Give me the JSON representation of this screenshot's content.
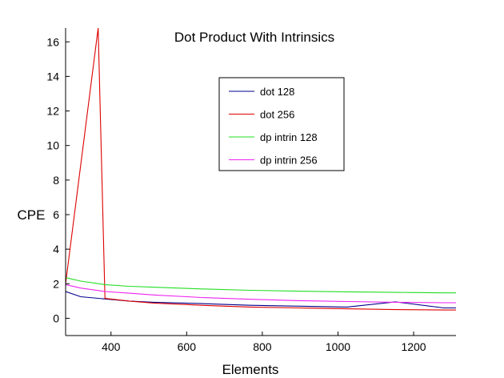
{
  "chart_data": {
    "type": "line",
    "title": "Dot Product With Intrinsics",
    "xlabel": "Elements",
    "ylabel": "CPE",
    "xlim": [
      280,
      1312
    ],
    "ylim": [
      -1,
      16.8
    ],
    "xticks": [
      400,
      600,
      800,
      1000,
      1200
    ],
    "yticks": [
      0,
      2,
      4,
      6,
      8,
      10,
      12,
      14,
      16
    ],
    "grid": false,
    "legend_position": "top-center",
    "series": [
      {
        "name": "dot 128",
        "color": "#00008b",
        "x": [
          280,
          320,
          384,
          448,
          512,
          640,
          768,
          896,
          1024,
          1152,
          1280,
          1312
        ],
        "y": [
          1.55,
          1.25,
          1.12,
          1.0,
          0.93,
          0.85,
          0.75,
          0.7,
          0.65,
          0.95,
          0.6,
          0.6
        ]
      },
      {
        "name": "dot 256",
        "color": "#dd0000",
        "x": [
          280,
          366,
          384,
          448,
          512,
          640,
          768,
          896,
          1024,
          1152,
          1280,
          1312
        ],
        "y": [
          2.0,
          16.8,
          1.15,
          1.0,
          0.88,
          0.75,
          0.65,
          0.6,
          0.55,
          0.5,
          0.48,
          0.48
        ]
      },
      {
        "name": "dp intrin 128",
        "color": "#22dd22",
        "x": [
          280,
          320,
          384,
          448,
          512,
          640,
          768,
          896,
          1024,
          1152,
          1280,
          1312
        ],
        "y": [
          2.35,
          2.15,
          1.95,
          1.85,
          1.8,
          1.7,
          1.62,
          1.57,
          1.53,
          1.5,
          1.47,
          1.47
        ]
      },
      {
        "name": "dp intrin 256",
        "color": "#ee22ee",
        "x": [
          280,
          320,
          384,
          448,
          512,
          640,
          768,
          896,
          1024,
          1152,
          1280,
          1312
        ],
        "y": [
          1.95,
          1.75,
          1.55,
          1.45,
          1.35,
          1.2,
          1.1,
          1.02,
          0.97,
          0.93,
          0.9,
          0.9
        ]
      }
    ]
  }
}
